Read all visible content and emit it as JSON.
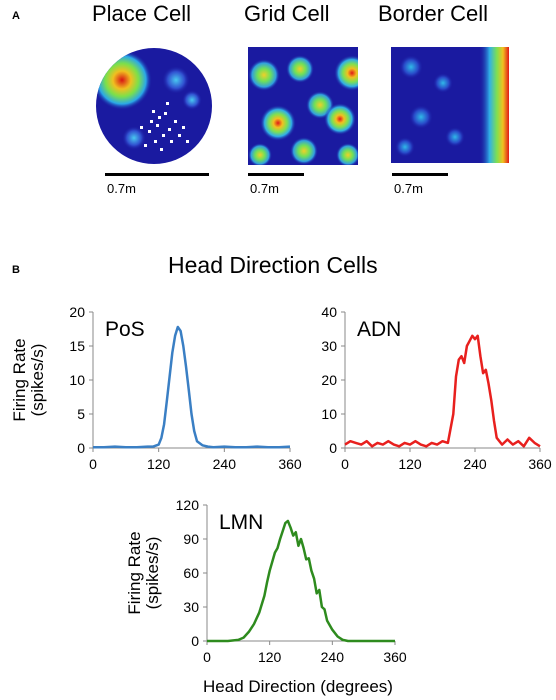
{
  "panel_a": {
    "letter": "A",
    "maps": [
      {
        "title": "Place Cell",
        "scale_label": "0.7m"
      },
      {
        "title": "Grid Cell",
        "scale_label": "0.7m"
      },
      {
        "title": "Border Cell",
        "scale_label": "0.7m"
      }
    ]
  },
  "panel_b": {
    "letter": "B",
    "title": "Head Direction Cells",
    "ylabel_line1": "Firing Rate",
    "ylabel_line2": "(spikes/s)",
    "xlabel": "Head Direction (degrees)"
  },
  "colors": {
    "PoS": "#3a7fc4",
    "ADN": "#e8201e",
    "LMN": "#2e8b1e",
    "heat_background": "#1a1aa0"
  },
  "chart_data": [
    {
      "type": "line",
      "name": "PoS",
      "x": [
        0,
        20,
        40,
        60,
        80,
        100,
        110,
        120,
        125,
        130,
        135,
        140,
        145,
        150,
        155,
        160,
        165,
        170,
        175,
        180,
        185,
        190,
        200,
        210,
        220,
        240,
        260,
        280,
        300,
        320,
        340,
        360
      ],
      "y": [
        0.1,
        0.1,
        0.2,
        0.1,
        0.1,
        0.2,
        0.2,
        0.5,
        1.5,
        3.5,
        7,
        10.5,
        14,
        16.5,
        17.8,
        17.2,
        15,
        12,
        8.5,
        5,
        2.5,
        1,
        0.4,
        0.2,
        0.1,
        0.2,
        0.1,
        0.1,
        0.2,
        0.1,
        0.1,
        0.2
      ],
      "xlim": [
        0,
        360
      ],
      "ylim": [
        0,
        20
      ],
      "xticks": [
        0,
        120,
        240,
        360
      ],
      "yticks": [
        0,
        5,
        10,
        15,
        20
      ]
    },
    {
      "type": "line",
      "name": "ADN",
      "x": [
        0,
        10,
        20,
        30,
        40,
        50,
        60,
        70,
        80,
        90,
        100,
        110,
        120,
        130,
        140,
        150,
        160,
        170,
        180,
        190,
        200,
        205,
        210,
        215,
        220,
        225,
        230,
        235,
        240,
        245,
        250,
        255,
        260,
        265,
        270,
        275,
        280,
        290,
        300,
        310,
        320,
        330,
        340,
        350,
        360
      ],
      "y": [
        1,
        2,
        1.5,
        1,
        2,
        0.5,
        1.5,
        1,
        2,
        1,
        0.5,
        1.5,
        1,
        2,
        1,
        0.5,
        1.5,
        1,
        2,
        1.5,
        10,
        21,
        26,
        27,
        25,
        30,
        31.5,
        33,
        32,
        33,
        27,
        22,
        23,
        19,
        14,
        8,
        3,
        1,
        2.5,
        1,
        2,
        0.5,
        3,
        1.5,
        0.5
      ],
      "xlim": [
        0,
        360
      ],
      "ylim": [
        0,
        40
      ],
      "xticks": [
        0,
        120,
        240,
        360
      ],
      "yticks": [
        0,
        10,
        20,
        30,
        40
      ]
    },
    {
      "type": "line",
      "name": "LMN",
      "x": [
        0,
        40,
        60,
        70,
        80,
        90,
        100,
        110,
        115,
        120,
        125,
        130,
        135,
        140,
        145,
        150,
        155,
        160,
        165,
        170,
        175,
        180,
        185,
        190,
        195,
        200,
        205,
        210,
        215,
        220,
        225,
        230,
        240,
        250,
        260,
        270,
        300,
        360
      ],
      "y": [
        0,
        0,
        1,
        3,
        8,
        15,
        25,
        40,
        52,
        62,
        70,
        78,
        82,
        90,
        97,
        104,
        106,
        100,
        93,
        96,
        84,
        90,
        82,
        72,
        73,
        62,
        55,
        42,
        45,
        30,
        28,
        18,
        10,
        4,
        1,
        0,
        0,
        0
      ],
      "xlim": [
        0,
        360
      ],
      "ylim": [
        0,
        120
      ],
      "xticks": [
        0,
        120,
        240,
        360
      ],
      "yticks": [
        0,
        30,
        60,
        90,
        120
      ]
    }
  ]
}
